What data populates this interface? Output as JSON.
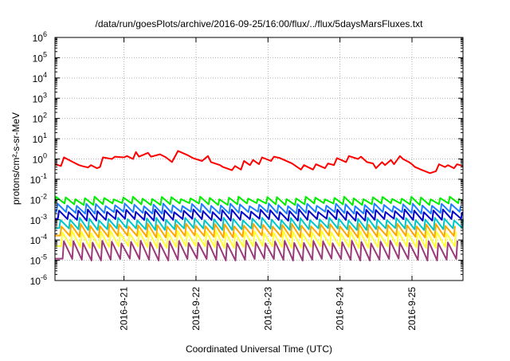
{
  "chart_data": {
    "type": "line",
    "title": "/data/run/goesPlots/archive/2016-09-25/16:00/flux/../flux/5daysMarsFluxes.txt",
    "xlabel": "Coordinated Universal Time (UTC)",
    "ylabel": "protons/cm²-s-sr-MeV",
    "yscale": "log",
    "ylim": [
      1e-06,
      1000000.0
    ],
    "xlim": [
      "2016-09-20 01:00",
      "2016-09-25 17:00"
    ],
    "grid": true,
    "legend": "none",
    "yticks": [
      {
        "value": 1e-06,
        "base": "10",
        "exp": "-6"
      },
      {
        "value": 1e-05,
        "base": "10",
        "exp": "-5"
      },
      {
        "value": 0.0001,
        "base": "10",
        "exp": "-4"
      },
      {
        "value": 0.001,
        "base": "10",
        "exp": "-3"
      },
      {
        "value": 0.01,
        "base": "10",
        "exp": "-2"
      },
      {
        "value": 0.1,
        "base": "10",
        "exp": "-1"
      },
      {
        "value": 1,
        "base": "10",
        "exp": "0"
      },
      {
        "value": 10.0,
        "base": "10",
        "exp": "1"
      },
      {
        "value": 100.0,
        "base": "10",
        "exp": "2"
      },
      {
        "value": 1000.0,
        "base": "10",
        "exp": "3"
      },
      {
        "value": 10000.0,
        "base": "10",
        "exp": "4"
      },
      {
        "value": 100000.0,
        "base": "10",
        "exp": "5"
      },
      {
        "value": 1000000.0,
        "base": "10",
        "exp": "6"
      }
    ],
    "xticks": [
      {
        "date": "2016-09-21 00:00",
        "label": "2016-9-21"
      },
      {
        "date": "2016-09-22 00:00",
        "label": "2016-9-22"
      },
      {
        "date": "2016-09-23 00:00",
        "label": "2016-9-23"
      },
      {
        "date": "2016-09-24 00:00",
        "label": "2016-9-24"
      },
      {
        "date": "2016-09-25 00:00",
        "label": "2016-9-25"
      }
    ],
    "series": [
      {
        "color": "#ff0000",
        "x": [
          "2016-09-20 01:00",
          "2016-09-20 03:00",
          "2016-09-20 04:00",
          "2016-09-20 07:00",
          "2016-09-20 09:00",
          "2016-09-20 10:00",
          "2016-09-20 12:00",
          "2016-09-20 13:00",
          "2016-09-20 15:00",
          "2016-09-20 16:00",
          "2016-09-20 17:00",
          "2016-09-20 20:00",
          "2016-09-20 21:00",
          "2016-09-21 00:00",
          "2016-09-21 01:00",
          "2016-09-21 03:00",
          "2016-09-21 04:00",
          "2016-09-21 05:00",
          "2016-09-21 08:00",
          "2016-09-21 09:00",
          "2016-09-21 12:00",
          "2016-09-21 14:00",
          "2016-09-21 16:00",
          "2016-09-21 18:00",
          "2016-09-21 21:00",
          "2016-09-21 23:00",
          "2016-09-22 02:00",
          "2016-09-22 04:00",
          "2016-09-22 05:00",
          "2016-09-22 08:00",
          "2016-09-22 09:00",
          "2016-09-22 12:00",
          "2016-09-22 13:00",
          "2016-09-22 15:00",
          "2016-09-22 16:00",
          "2016-09-22 18:00",
          "2016-09-22 19:00",
          "2016-09-22 21:00",
          "2016-09-22 22:00",
          "2016-09-23 01:00",
          "2016-09-23 02:00",
          "2016-09-23 04:00",
          "2016-09-23 08:00",
          "2016-09-23 11:00",
          "2016-09-23 12:00",
          "2016-09-23 15:00",
          "2016-09-23 16:00",
          "2016-09-23 19:00",
          "2016-09-23 20:00",
          "2016-09-23 22:00",
          "2016-09-23 23:00",
          "2016-09-24 02:00",
          "2016-09-24 03:00",
          "2016-09-24 06:00",
          "2016-09-24 07:00",
          "2016-09-24 09:00",
          "2016-09-24 11:00",
          "2016-09-24 12:00",
          "2016-09-24 14:00",
          "2016-09-24 15:00",
          "2016-09-24 17:00",
          "2016-09-24 18:00",
          "2016-09-24 20:00",
          "2016-09-24 21:00",
          "2016-09-24 23:00",
          "2016-09-25 00:00",
          "2016-09-25 01:00",
          "2016-09-25 03:00",
          "2016-09-25 06:00",
          "2016-09-25 08:00",
          "2016-09-25 09:00",
          "2016-09-25 11:00",
          "2016-09-25 12:00",
          "2016-09-25 14:00",
          "2016-09-25 15:00",
          "2016-09-25 17:00"
        ],
        "y": [
          0.55,
          0.45,
          1.2,
          0.7,
          0.5,
          0.45,
          0.38,
          0.5,
          0.35,
          0.4,
          1.2,
          1.0,
          1.3,
          1.2,
          1.4,
          1.0,
          2.2,
          1.3,
          2.0,
          1.3,
          1.7,
          1.2,
          0.7,
          2.5,
          1.6,
          1.1,
          0.8,
          1.4,
          0.7,
          0.5,
          0.4,
          0.28,
          0.45,
          0.3,
          0.8,
          0.5,
          0.9,
          0.55,
          1.2,
          0.8,
          1.3,
          1.1,
          0.6,
          0.3,
          0.5,
          0.3,
          0.55,
          0.35,
          0.6,
          0.5,
          1.1,
          0.7,
          1.4,
          1.0,
          1.3,
          0.7,
          0.6,
          0.35,
          0.7,
          0.5,
          0.9,
          0.55,
          1.4,
          1.0,
          0.7,
          0.55,
          0.4,
          0.3,
          0.2,
          0.25,
          0.55,
          0.4,
          0.5,
          0.35,
          0.55,
          0.45
        ]
      },
      {
        "color": "#00ee00",
        "base": 0.012,
        "drop": 0.55,
        "phase": 0.0
      },
      {
        "color": "#1e7fff",
        "base": 0.0055,
        "drop": 0.45,
        "phase": 0.15
      },
      {
        "color": "#0000c8",
        "base": 0.0028,
        "drop": 0.4,
        "phase": 0.3
      },
      {
        "color": "#00c8c8",
        "base": 0.0011,
        "drop": 0.35,
        "phase": 0.45
      },
      {
        "color": "#ffa500",
        "base": 0.00055,
        "drop": 0.3,
        "phase": 0.55
      },
      {
        "color": "#ffff33",
        "base": 0.00025,
        "drop": 0.2,
        "phase": 0.65
      },
      {
        "color": "#9b3a7a",
        "base": 8e-05,
        "drop": 0.15,
        "phase": 0.8
      }
    ],
    "sawtooth_period_hours": 3.2
  }
}
